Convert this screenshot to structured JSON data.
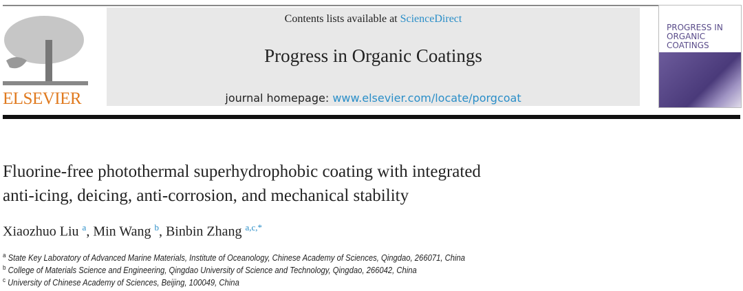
{
  "header": {
    "contents_prefix": "Contents lists available at ",
    "contents_link": "ScienceDirect",
    "journal_title": "Progress in Organic Coatings",
    "homepage_prefix": "journal homepage: ",
    "homepage_link": "www.elsevier.com/locate/porgcoat",
    "publisher": "ELSEVIER",
    "cover_title": "PROGRESS IN ORGANIC COATINGS"
  },
  "article": {
    "title_line1": "Fluorine-free photothermal superhydrophobic coating with integrated",
    "title_line2": "anti-icing, deicing, anti-corrosion, and mechanical stability",
    "authors": [
      {
        "name": "Xiaozhuo Liu",
        "sup": "a"
      },
      {
        "name": "Min Wang",
        "sup": "b"
      },
      {
        "name": "Binbin Zhang",
        "sup": "a,c,*"
      }
    ],
    "affiliations": [
      {
        "mark": "a",
        "text": "State Key Laboratory of Advanced Marine Materials, Institute of Oceanology, Chinese Academy of Sciences, Qingdao, 266071, China"
      },
      {
        "mark": "b",
        "text": "College of Materials Science and Engineering, Qingdao University of Science and Technology, Qingdao, 266042, China"
      },
      {
        "mark": "c",
        "text": "University of Chinese Academy of Sciences, Beijing, 100049, China"
      }
    ]
  },
  "colors": {
    "link": "#2a8ec8",
    "publisher": "#e07a1f"
  }
}
